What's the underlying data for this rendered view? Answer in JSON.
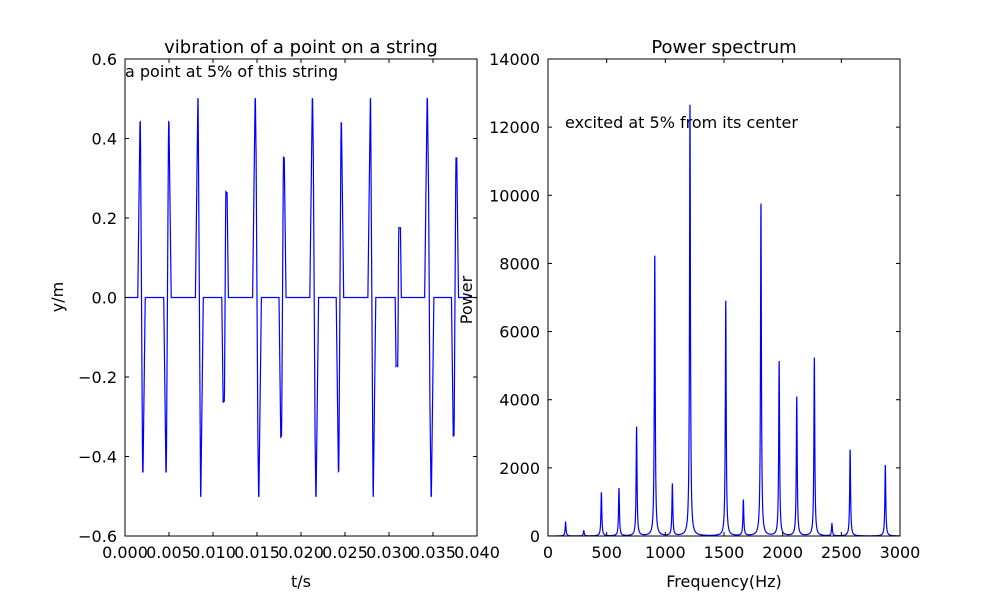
{
  "colors": {
    "line": "#0000ff",
    "axes": "#000000",
    "background": "#ffffff"
  },
  "chart_data": [
    {
      "type": "line",
      "title": "vibration of a point on a string",
      "xlabel": "t/s",
      "ylabel": "y/m",
      "xlim": [
        0.0,
        0.04
      ],
      "ylim": [
        -0.6,
        0.6
      ],
      "xticks": [
        "0.000",
        "0.005",
        "0.010",
        "0.015",
        "0.020",
        "0.025",
        "0.030",
        "0.035",
        "0.040"
      ],
      "yticks": [
        "−0.6",
        "−0.4",
        "−0.2",
        "0.0",
        "0.2",
        "0.4",
        "0.6"
      ],
      "annotation": "a point at 5% of this string",
      "grid": false,
      "legend": "none",
      "series": [
        {
          "pulse_amplitude": 0.5,
          "positive_pulses": [
            0.00175,
            0.00495,
            0.0083,
            0.01145,
            0.0148,
            0.018,
            0.0213,
            0.02455,
            0.0279,
            0.0311,
            0.03435,
            0.0376
          ],
          "negative_pulses": [
            0.002,
            0.0047,
            0.0086,
            0.0113,
            0.0152,
            0.0178,
            0.0217,
            0.0243,
            0.0282,
            0.031,
            0.0348,
            0.0374
          ],
          "positive_window": [
            0.00175,
            0.00495
          ],
          "negative_window": [
            0.002,
            0.0047
          ],
          "period": 0.0065
        }
      ]
    },
    {
      "type": "line",
      "title": "Power spectrum",
      "xlabel": "Frequency(Hz)",
      "ylabel": "Power",
      "xlim": [
        0,
        3000
      ],
      "ylim": [
        0,
        14000
      ],
      "xticks": [
        "0",
        "500",
        "1000",
        "1500",
        "2000",
        "2500",
        "3000"
      ],
      "yticks": [
        "0",
        "2000",
        "4000",
        "6000",
        "8000",
        "10000",
        "12000",
        "14000"
      ],
      "annotation": "excited at 5% from its center",
      "grid": false,
      "legend": "none",
      "series": [
        {
          "peaks": [
            {
              "f": 150,
              "p": 400
            },
            {
              "f": 305,
              "p": 150
            },
            {
              "f": 455,
              "p": 1280
            },
            {
              "f": 605,
              "p": 1400
            },
            {
              "f": 755,
              "p": 3200
            },
            {
              "f": 910,
              "p": 8220
            },
            {
              "f": 1060,
              "p": 1520
            },
            {
              "f": 1210,
              "p": 12650
            },
            {
              "f": 1515,
              "p": 6900
            },
            {
              "f": 1665,
              "p": 1050
            },
            {
              "f": 1815,
              "p": 9750
            },
            {
              "f": 1970,
              "p": 5120
            },
            {
              "f": 2120,
              "p": 4080
            },
            {
              "f": 2270,
              "p": 5230
            },
            {
              "f": 2420,
              "p": 350
            },
            {
              "f": 2575,
              "p": 2530
            },
            {
              "f": 2875,
              "p": 2080
            }
          ]
        }
      ]
    }
  ]
}
